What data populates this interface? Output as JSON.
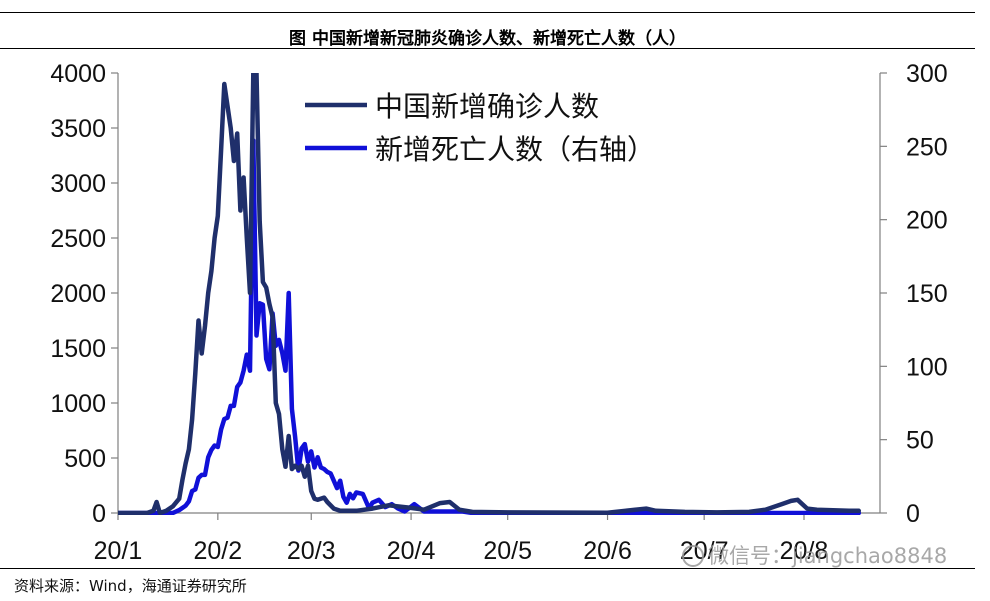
{
  "title": "图  中国新增新冠肺炎确诊人数、新增死亡人数（人）",
  "source": "资料来源：Wind，海通证券研究所",
  "watermark": "微信号：jiangchao8848",
  "chart_data": {
    "type": "line",
    "title": "图  中国新增新冠肺炎确诊人数、新增死亡人数（人）",
    "x_ticks": [
      "20/1",
      "20/2",
      "20/3",
      "20/4",
      "20/5",
      "20/6",
      "20/7",
      "20/8"
    ],
    "x_tick_dates": [
      "2020-01-01",
      "2020-02-01",
      "2020-03-01",
      "2020-04-01",
      "2020-05-01",
      "2020-06-01",
      "2020-07-01",
      "2020-08-01"
    ],
    "y_left": {
      "ticks": [
        0,
        500,
        1000,
        1500,
        2000,
        2500,
        3000,
        3500,
        4000
      ],
      "lim": [
        0,
        4000
      ]
    },
    "y_right": {
      "ticks": [
        0,
        50,
        100,
        150,
        200,
        250,
        300
      ],
      "lim": [
        0,
        300
      ]
    },
    "legend": {
      "position": "top-center"
    },
    "series": [
      {
        "name": "中国新增确诊人数",
        "axis": "left",
        "color": "#1f2f6b",
        "points": [
          [
            "2020-01-01",
            0
          ],
          [
            "2020-01-10",
            0
          ],
          [
            "2020-01-12",
            20
          ],
          [
            "2020-01-13",
            100
          ],
          [
            "2020-01-14",
            0
          ],
          [
            "2020-01-16",
            20
          ],
          [
            "2020-01-18",
            60
          ],
          [
            "2020-01-20",
            130
          ],
          [
            "2020-01-21",
            300
          ],
          [
            "2020-01-22",
            450
          ],
          [
            "2020-01-23",
            580
          ],
          [
            "2020-01-24",
            850
          ],
          [
            "2020-01-25",
            1270
          ],
          [
            "2020-01-26",
            1750
          ],
          [
            "2020-01-27",
            1450
          ],
          [
            "2020-01-28",
            1700
          ],
          [
            "2020-01-29",
            2000
          ],
          [
            "2020-01-30",
            2200
          ],
          [
            "2020-01-31",
            2500
          ],
          [
            "2020-02-01",
            2700
          ],
          [
            "2020-02-02",
            3300
          ],
          [
            "2020-02-03",
            3900
          ],
          [
            "2020-02-04",
            3700
          ],
          [
            "2020-02-05",
            3500
          ],
          [
            "2020-02-06",
            3200
          ],
          [
            "2020-02-07",
            3450
          ],
          [
            "2020-02-08",
            2750
          ],
          [
            "2020-02-09",
            3050
          ],
          [
            "2020-02-10",
            2500
          ],
          [
            "2020-02-11",
            2000
          ],
          [
            "2020-02-12",
            4000
          ],
          [
            "2020-02-13",
            4000
          ],
          [
            "2020-02-14",
            2650
          ],
          [
            "2020-02-15",
            2100
          ],
          [
            "2020-02-16",
            2050
          ],
          [
            "2020-02-17",
            1900
          ],
          [
            "2020-02-18",
            1780
          ],
          [
            "2020-02-19",
            1000
          ],
          [
            "2020-02-20",
            900
          ],
          [
            "2020-02-21",
            580
          ],
          [
            "2020-02-22",
            420
          ],
          [
            "2020-02-23",
            700
          ],
          [
            "2020-02-24",
            400
          ],
          [
            "2020-02-25",
            430
          ],
          [
            "2020-02-26",
            400
          ],
          [
            "2020-02-27",
            430
          ],
          [
            "2020-02-28",
            330
          ],
          [
            "2020-02-29",
            430
          ],
          [
            "2020-03-01",
            200
          ],
          [
            "2020-03-02",
            130
          ],
          [
            "2020-03-03",
            120
          ],
          [
            "2020-03-05",
            140
          ],
          [
            "2020-03-06",
            100
          ],
          [
            "2020-03-08",
            40
          ],
          [
            "2020-03-10",
            20
          ],
          [
            "2020-03-15",
            20
          ],
          [
            "2020-03-20",
            40
          ],
          [
            "2020-03-25",
            70
          ],
          [
            "2020-03-31",
            50
          ],
          [
            "2020-04-05",
            30
          ],
          [
            "2020-04-10",
            90
          ],
          [
            "2020-04-13",
            100
          ],
          [
            "2020-04-16",
            30
          ],
          [
            "2020-04-20",
            10
          ],
          [
            "2020-05-01",
            5
          ],
          [
            "2020-06-01",
            3
          ],
          [
            "2020-06-13",
            40
          ],
          [
            "2020-06-16",
            20
          ],
          [
            "2020-06-25",
            10
          ],
          [
            "2020-07-05",
            5
          ],
          [
            "2020-07-15",
            10
          ],
          [
            "2020-07-20",
            30
          ],
          [
            "2020-07-25",
            80
          ],
          [
            "2020-07-28",
            110
          ],
          [
            "2020-07-30",
            120
          ],
          [
            "2020-08-02",
            40
          ],
          [
            "2020-08-05",
            30
          ],
          [
            "2020-08-10",
            25
          ],
          [
            "2020-08-15",
            20
          ],
          [
            "2020-08-18",
            20
          ]
        ]
      },
      {
        "name": "新增死亡人数（右轴）",
        "axis": "right",
        "color": "#1010d8",
        "points": [
          [
            "2020-01-01",
            0
          ],
          [
            "2020-01-18",
            0
          ],
          [
            "2020-01-20",
            2
          ],
          [
            "2020-01-22",
            5
          ],
          [
            "2020-01-23",
            8
          ],
          [
            "2020-01-24",
            15
          ],
          [
            "2020-01-25",
            16
          ],
          [
            "2020-01-26",
            24
          ],
          [
            "2020-01-27",
            26
          ],
          [
            "2020-01-28",
            26
          ],
          [
            "2020-01-29",
            38
          ],
          [
            "2020-01-30",
            43
          ],
          [
            "2020-01-31",
            46
          ],
          [
            "2020-02-01",
            45
          ],
          [
            "2020-02-02",
            57
          ],
          [
            "2020-02-03",
            64
          ],
          [
            "2020-02-04",
            65
          ],
          [
            "2020-02-05",
            73
          ],
          [
            "2020-02-06",
            73
          ],
          [
            "2020-02-07",
            86
          ],
          [
            "2020-02-08",
            89
          ],
          [
            "2020-02-09",
            97
          ],
          [
            "2020-02-10",
            108
          ],
          [
            "2020-02-11",
            97
          ],
          [
            "2020-02-12",
            254
          ],
          [
            "2020-02-13",
            121
          ],
          [
            "2020-02-14",
            143
          ],
          [
            "2020-02-15",
            142
          ],
          [
            "2020-02-16",
            105
          ],
          [
            "2020-02-17",
            98
          ],
          [
            "2020-02-18",
            136
          ],
          [
            "2020-02-19",
            114
          ],
          [
            "2020-02-20",
            118
          ],
          [
            "2020-02-21",
            109
          ],
          [
            "2020-02-22",
            97
          ],
          [
            "2020-02-23",
            150
          ],
          [
            "2020-02-24",
            71
          ],
          [
            "2020-02-25",
            52
          ],
          [
            "2020-02-26",
            29
          ],
          [
            "2020-02-27",
            44
          ],
          [
            "2020-02-28",
            47
          ],
          [
            "2020-02-29",
            35
          ],
          [
            "2020-03-01",
            42
          ],
          [
            "2020-03-02",
            31
          ],
          [
            "2020-03-03",
            38
          ],
          [
            "2020-03-04",
            31
          ],
          [
            "2020-03-05",
            30
          ],
          [
            "2020-03-06",
            28
          ],
          [
            "2020-03-07",
            27
          ],
          [
            "2020-03-08",
            22
          ],
          [
            "2020-03-09",
            17
          ],
          [
            "2020-03-10",
            22
          ],
          [
            "2020-03-11",
            11
          ],
          [
            "2020-03-12",
            7
          ],
          [
            "2020-03-13",
            13
          ],
          [
            "2020-03-14",
            10
          ],
          [
            "2020-03-15",
            14
          ],
          [
            "2020-03-17",
            13
          ],
          [
            "2020-03-19",
            3
          ],
          [
            "2020-03-20",
            7
          ],
          [
            "2020-03-22",
            9
          ],
          [
            "2020-03-24",
            4
          ],
          [
            "2020-03-26",
            6
          ],
          [
            "2020-03-28",
            3
          ],
          [
            "2020-03-30",
            1
          ],
          [
            "2020-04-02",
            6
          ],
          [
            "2020-04-05",
            1
          ],
          [
            "2020-04-10",
            1
          ],
          [
            "2020-04-17",
            1
          ],
          [
            "2020-04-20",
            0
          ],
          [
            "2020-05-01",
            0
          ],
          [
            "2020-06-01",
            0
          ],
          [
            "2020-07-01",
            0
          ],
          [
            "2020-08-18",
            0
          ]
        ]
      }
    ]
  }
}
